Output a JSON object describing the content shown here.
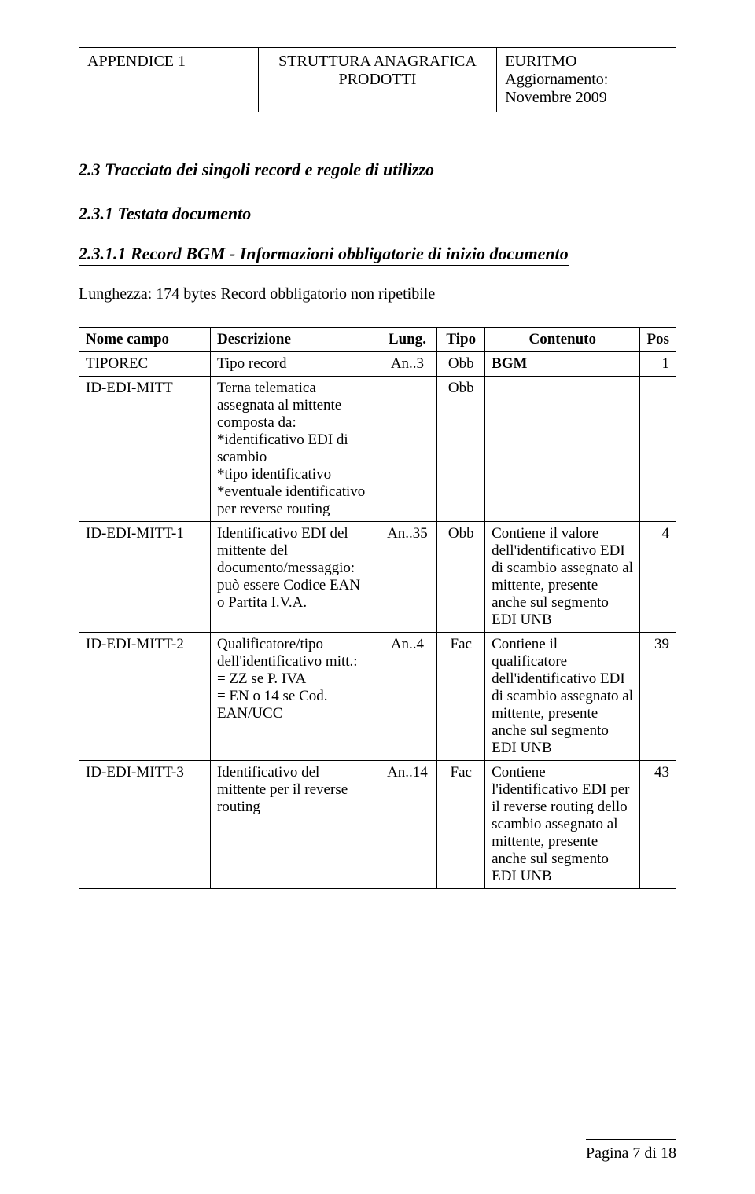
{
  "header": {
    "left": "APPENDICE 1",
    "mid_line1": "STRUTTURA ANAGRAFICA",
    "mid_line2": "PRODOTTI",
    "right_line1": "EURITMO",
    "right_line2": "Aggiornamento:",
    "right_line3": "Novembre 2009"
  },
  "section": {
    "title": "2.3   Tracciato dei singoli record e regole di utilizzo",
    "subsection": "2.3.1   Testata documento",
    "record_label": "2.3.1.1   Record BGM - Informazioni obbligatorie di inizio documento"
  },
  "intro": "Lunghezza: 174 bytes Record obbligatorio non ripetibile",
  "columns": {
    "nome": "Nome campo",
    "desc": "Descrizione",
    "lung": "Lung.",
    "tipo": "Tipo",
    "cont": "Contenuto",
    "pos": "Pos"
  },
  "rows": [
    {
      "div": "solid",
      "nome": "TIPOREC",
      "desc": "Tipo record",
      "lung": "An..3",
      "tipo": "Obb",
      "cont": "BGM",
      "pos": "1",
      "cont_bold": true
    },
    {
      "div": "solid",
      "nome": "ID-EDI-MITT",
      "desc": "Terna telematica assegnata al mittente composta da:\n*identificativo EDI di scambio\n*tipo identificativo\n*eventuale identificativo per reverse routing",
      "lung": "",
      "tipo": "Obb",
      "cont": "",
      "pos": ""
    },
    {
      "div": "dashed",
      "nome": "ID-EDI-MITT-1",
      "desc": "Identificativo EDI del mittente del documento/messaggio: può essere Codice EAN o Partita I.V.A.",
      "lung": "An..35",
      "tipo": "Obb",
      "cont": "Contiene il valore dell'identificativo EDI di scambio assegnato al mittente, presente anche sul segmento EDI UNB",
      "pos": "4"
    },
    {
      "div": "dashed",
      "nome": "ID-EDI-MITT-2",
      "desc": "Qualificatore/tipo dell'identificativo mitt.:\n= ZZ se P. IVA\n= EN o 14 se Cod. EAN/UCC",
      "lung": "An..4",
      "tipo": "Fac",
      "cont": "Contiene il qualificatore dell'identificativo EDI di scambio assegnato al mittente, presente anche sul segmento EDI UNB",
      "pos": "39"
    },
    {
      "div": "dashed",
      "nome": "ID-EDI-MITT-3",
      "desc": "Identificativo del mittente per il reverse routing",
      "lung": "An..14",
      "tipo": "Fac",
      "cont": "Contiene l'identificativo EDI per il reverse routing dello scambio assegnato al mittente, presente anche sul segmento EDI UNB",
      "pos": "43"
    }
  ],
  "footer": "Pagina 7 di 18"
}
